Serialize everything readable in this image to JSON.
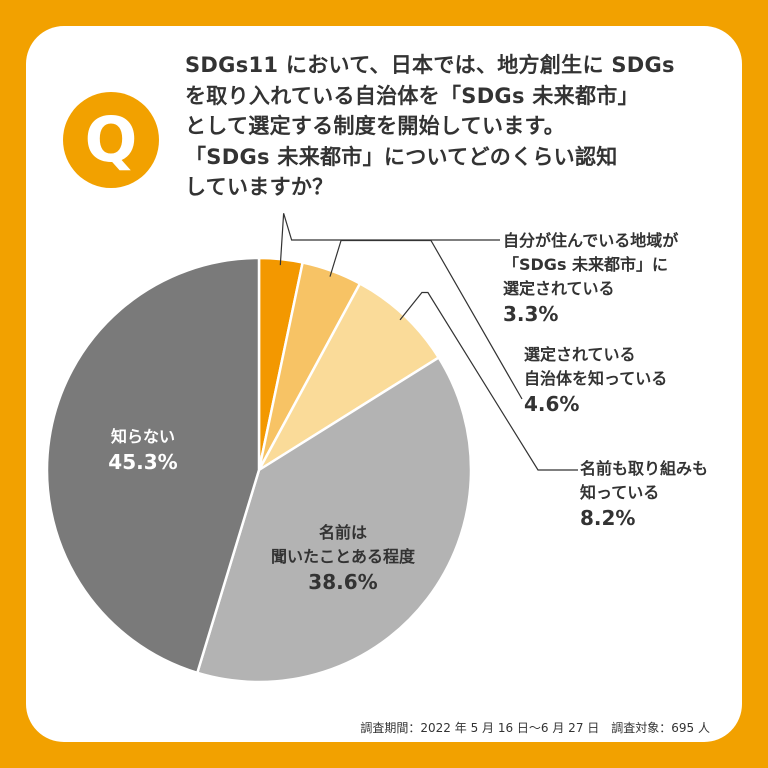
{
  "question_badge": "Q",
  "question_lines": [
    "SDGs11 において、日本では、地方創生に SDGs",
    "を取り入れている自治体を「SDGs 未来都市」",
    "として選定する制度を開始しています。",
    "「SDGs 未来都市」についてどのくらい認知",
    "していますか？"
  ],
  "footnote": "調査期間：2022 年 5 月 16 日〜6 月 27 日　調査対象：695 人",
  "colors": {
    "background": "#f2a100",
    "card": "#ffffff",
    "text": "#333333"
  },
  "chart_data": {
    "type": "pie",
    "start_angle_deg": 0,
    "direction": "clockwise",
    "slices": [
      {
        "label_lines": [
          "自分が住んでいる地域が",
          "「SDGs 未来都市」に",
          "選定されている"
        ],
        "value": 3.3,
        "value_label": "3.3%",
        "color": "#f39800",
        "label_placement": "outside"
      },
      {
        "label_lines": [
          "選定されている",
          "自治体を知っている"
        ],
        "value": 4.6,
        "value_label": "4.6%",
        "color": "#f7c365",
        "label_placement": "outside"
      },
      {
        "label_lines": [
          "名前も取り組みも",
          "知っている"
        ],
        "value": 8.2,
        "value_label": "8.2%",
        "color": "#fadb99",
        "label_placement": "outside"
      },
      {
        "label_lines": [
          "名前は",
          "聞いたことある程度"
        ],
        "value": 38.6,
        "value_label": "38.6%",
        "color": "#b3b3b3",
        "label_placement": "inside"
      },
      {
        "label_lines": [
          "知らない"
        ],
        "value": 45.3,
        "value_label": "45.3%",
        "color": "#7a7a7a",
        "label_placement": "inside"
      }
    ]
  }
}
